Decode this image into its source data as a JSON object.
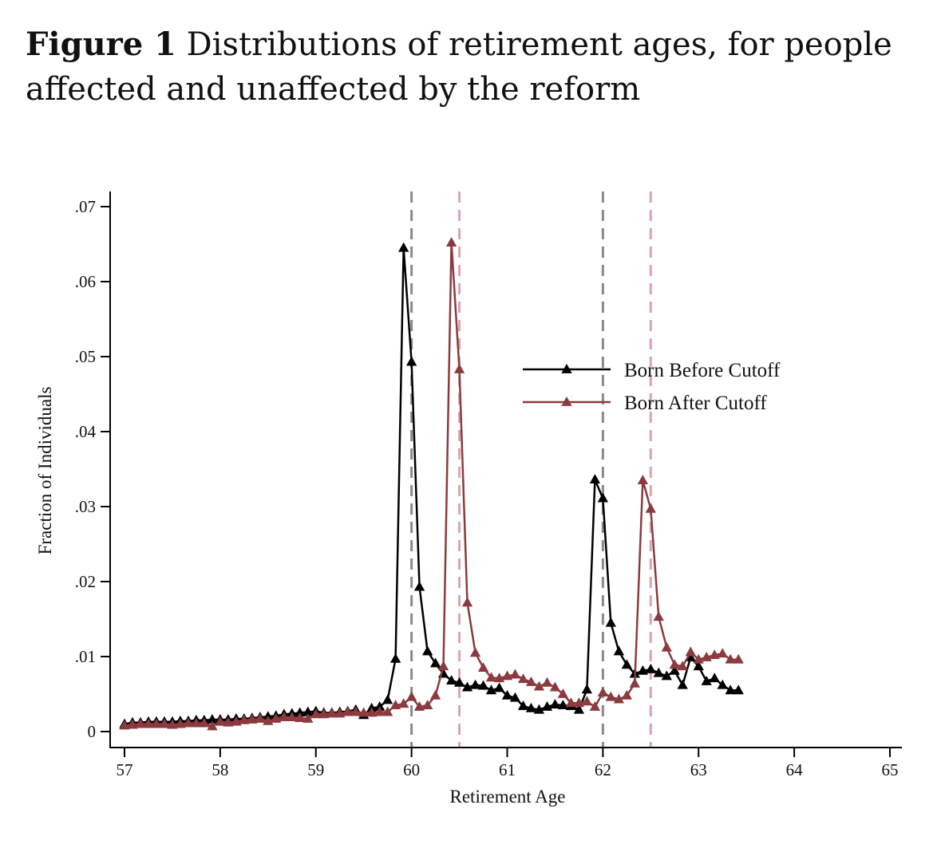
{
  "caption": {
    "figure_label": "Figure 1",
    "text": "Distributions of retirement ages, for people affected and unaffected by the reform"
  },
  "chart_data": {
    "type": "line",
    "title": "",
    "xlabel": "Retirement Age",
    "ylabel": "Fraction of Individuals",
    "xlim": [
      57,
      65
    ],
    "ylim": [
      0,
      0.07
    ],
    "x_ticks": [
      57,
      58,
      59,
      60,
      61,
      62,
      63,
      64,
      65
    ],
    "x_tick_labels": [
      "57",
      "58",
      "59",
      "60",
      "61",
      "62",
      "63",
      "64",
      "65"
    ],
    "y_ticks": [
      0,
      0.01,
      0.02,
      0.03,
      0.04,
      0.05,
      0.06,
      0.07
    ],
    "y_tick_labels": [
      "0",
      ".01",
      ".02",
      ".03",
      ".04",
      ".05",
      ".06",
      ".07"
    ],
    "grid": false,
    "legend_position": "center-right",
    "reference_lines": [
      {
        "x": 60,
        "color": "#8a8a8a"
      },
      {
        "x": 60.5,
        "color": "#d7a7ad"
      },
      {
        "x": 62,
        "color": "#8a8a8a"
      },
      {
        "x": 62.5,
        "color": "#d7a7ad"
      }
    ],
    "series": [
      {
        "name": "Born Before Cutoff",
        "color": "#000000",
        "marker": "triangle",
        "x": [
          57.0,
          57.083,
          57.167,
          57.25,
          57.333,
          57.417,
          57.5,
          57.583,
          57.667,
          57.75,
          57.833,
          57.917,
          58.0,
          58.083,
          58.167,
          58.25,
          58.333,
          58.417,
          58.5,
          58.583,
          58.667,
          58.75,
          58.833,
          58.917,
          59.0,
          59.083,
          59.167,
          59.25,
          59.333,
          59.417,
          59.5,
          59.583,
          59.667,
          59.75,
          59.833,
          59.917,
          60.0,
          60.083,
          60.167,
          60.25,
          60.333,
          60.417,
          60.5,
          60.583,
          60.667,
          60.75,
          60.833,
          60.917,
          61.0,
          61.083,
          61.167,
          61.25,
          61.333,
          61.417,
          61.5,
          61.583,
          61.667,
          61.75,
          61.833,
          61.917,
          62.0,
          62.083,
          62.167,
          62.25,
          62.333,
          62.417,
          62.5,
          62.583,
          62.667,
          62.75,
          62.833,
          62.917,
          63.0,
          63.083,
          63.167,
          63.25,
          63.333,
          63.417
        ],
        "y": [
          0.001,
          0.0012,
          0.0012,
          0.0013,
          0.0013,
          0.0013,
          0.0013,
          0.0014,
          0.0014,
          0.0015,
          0.0015,
          0.0016,
          0.0016,
          0.0016,
          0.0017,
          0.0017,
          0.0018,
          0.0019,
          0.002,
          0.0021,
          0.0023,
          0.0024,
          0.0025,
          0.0026,
          0.0027,
          0.0025,
          0.0025,
          0.0026,
          0.0027,
          0.0029,
          0.0022,
          0.0031,
          0.0033,
          0.0042,
          0.0097,
          0.0645,
          0.0493,
          0.0193,
          0.0107,
          0.0091,
          0.0077,
          0.0068,
          0.0065,
          0.0059,
          0.0062,
          0.0061,
          0.0055,
          0.0058,
          0.0048,
          0.0045,
          0.0034,
          0.0031,
          0.0029,
          0.0033,
          0.0036,
          0.0035,
          0.0034,
          0.0029,
          0.0056,
          0.0336,
          0.0311,
          0.0145,
          0.0107,
          0.0089,
          0.0077,
          0.0081,
          0.0083,
          0.0078,
          0.0074,
          0.0081,
          0.0062,
          0.0099,
          0.0087,
          0.0067,
          0.0071,
          0.0062,
          0.0055,
          0.0055
        ]
      },
      {
        "name": "Born After Cutoff",
        "color": "#8b3a3f",
        "marker": "triangle",
        "x": [
          57.0,
          57.083,
          57.167,
          57.25,
          57.333,
          57.417,
          57.5,
          57.583,
          57.667,
          57.75,
          57.833,
          57.917,
          58.0,
          58.083,
          58.167,
          58.25,
          58.333,
          58.417,
          58.5,
          58.583,
          58.667,
          58.75,
          58.833,
          58.917,
          59.0,
          59.083,
          59.167,
          59.25,
          59.333,
          59.417,
          59.5,
          59.583,
          59.667,
          59.75,
          59.833,
          59.917,
          60.0,
          60.083,
          60.167,
          60.25,
          60.333,
          60.417,
          60.5,
          60.583,
          60.667,
          60.75,
          60.833,
          60.917,
          61.0,
          61.083,
          61.167,
          61.25,
          61.333,
          61.417,
          61.5,
          61.583,
          61.667,
          61.75,
          61.833,
          61.917,
          62.0,
          62.083,
          62.167,
          62.25,
          62.333,
          62.417,
          62.5,
          62.583,
          62.667,
          62.75,
          62.833,
          62.917,
          63.0,
          63.083,
          63.167,
          63.25,
          63.333,
          63.417
        ],
        "y": [
          0.0008,
          0.0009,
          0.001,
          0.001,
          0.001,
          0.001,
          0.0009,
          0.001,
          0.0011,
          0.0011,
          0.0011,
          0.0007,
          0.0013,
          0.0012,
          0.0013,
          0.0015,
          0.0016,
          0.0017,
          0.0014,
          0.0017,
          0.0019,
          0.0019,
          0.0018,
          0.0017,
          0.0023,
          0.0023,
          0.0024,
          0.0024,
          0.0026,
          0.0026,
          0.0025,
          0.0025,
          0.0026,
          0.0026,
          0.0035,
          0.0037,
          0.0046,
          0.0033,
          0.0035,
          0.0048,
          0.0087,
          0.0652,
          0.0483,
          0.0172,
          0.0105,
          0.0085,
          0.0072,
          0.0071,
          0.0074,
          0.0076,
          0.007,
          0.0066,
          0.006,
          0.0065,
          0.0059,
          0.005,
          0.0038,
          0.0038,
          0.004,
          0.0033,
          0.0052,
          0.0046,
          0.0043,
          0.0048,
          0.0064,
          0.0335,
          0.0297,
          0.0153,
          0.0112,
          0.0089,
          0.0087,
          0.0106,
          0.0096,
          0.0099,
          0.0102,
          0.0104,
          0.0096,
          0.0096
        ]
      }
    ]
  }
}
